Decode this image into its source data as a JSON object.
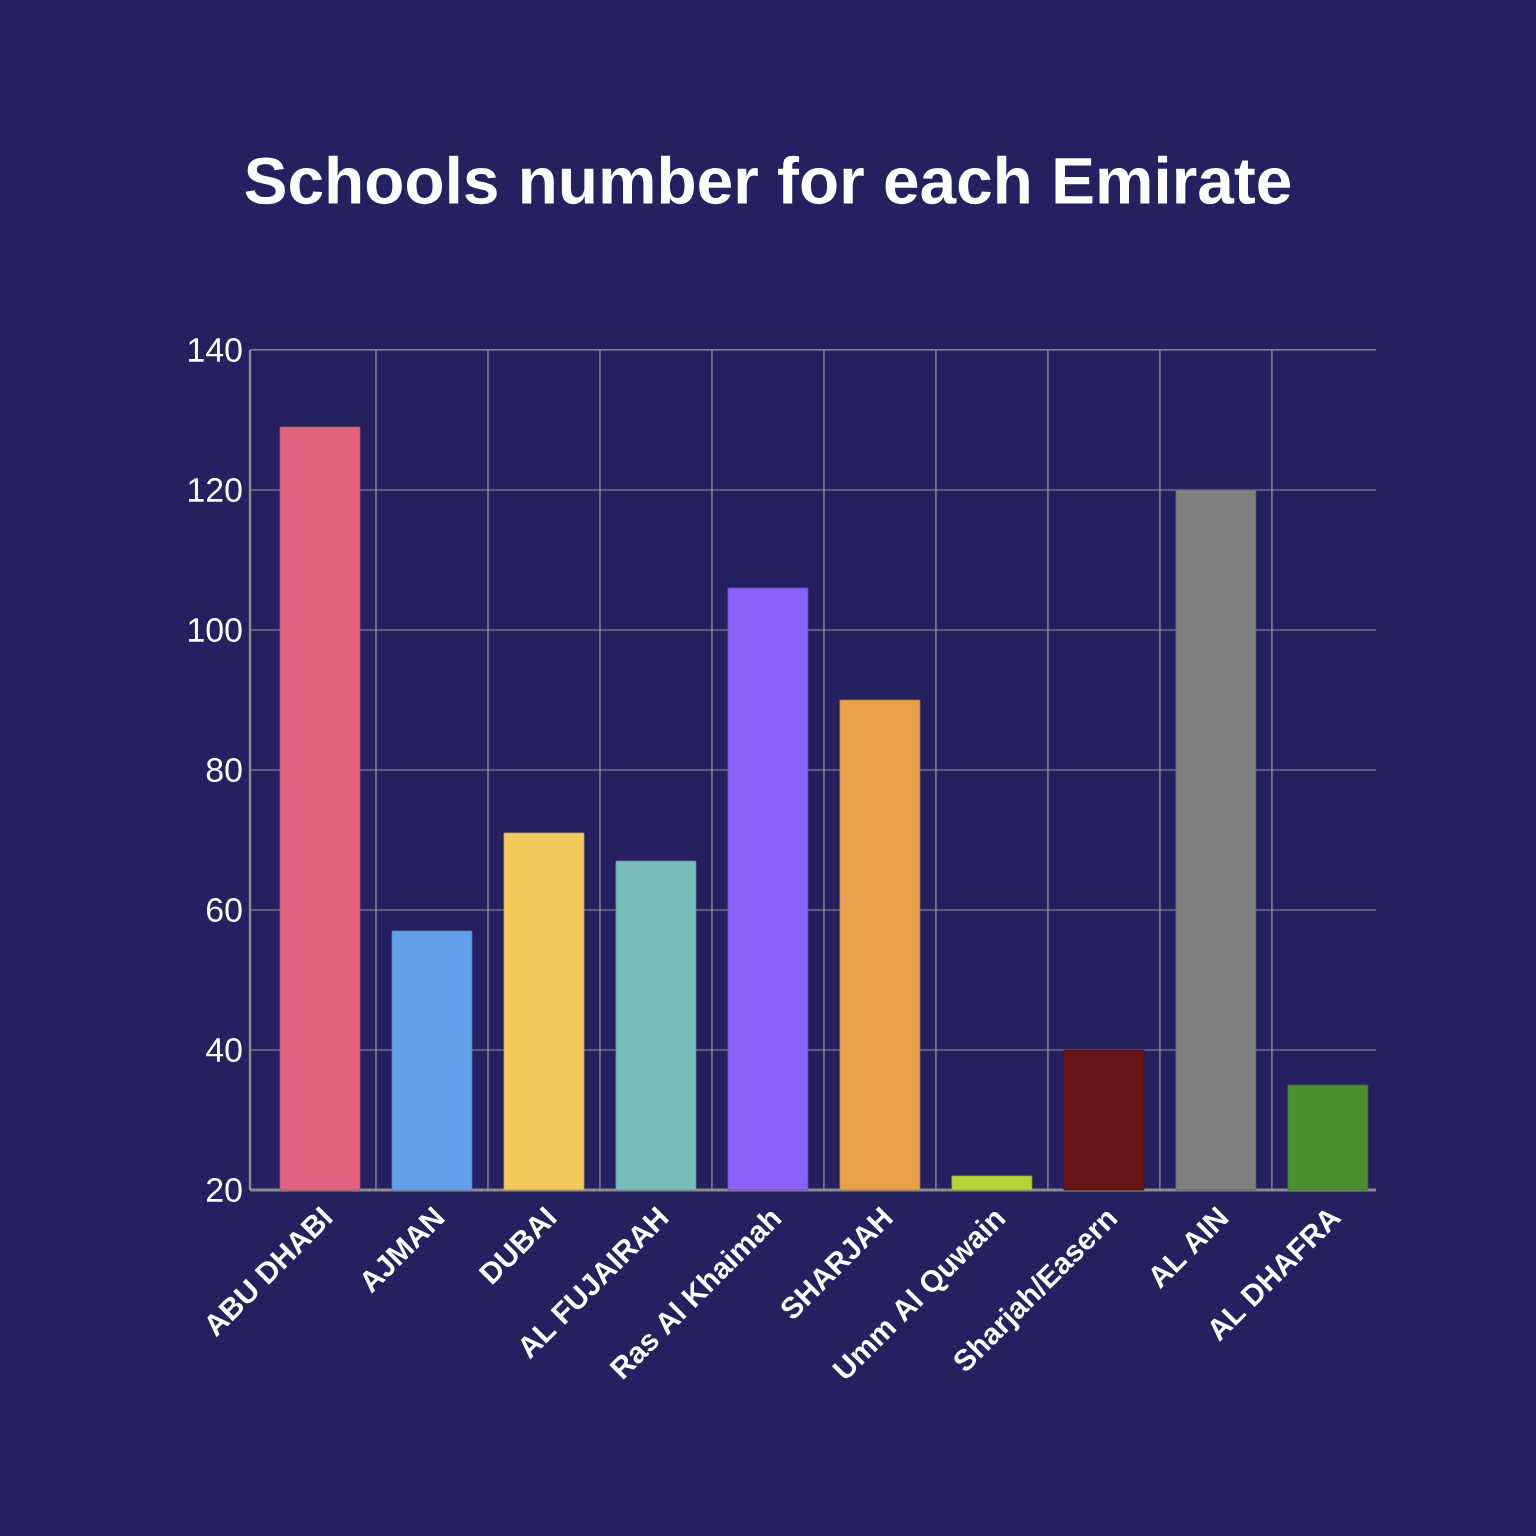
{
  "chart_data": {
    "type": "bar",
    "title": "Schools number for each Emirate",
    "categories": [
      "ABU DHABI",
      "AJMAN",
      "DUBAI",
      "AL FUJAIRAH",
      "Ras Al Khaimah",
      "SHARJAH",
      "Umm Al Quwain",
      "Sharjah/Easern",
      "AL AIN",
      "AL DHAFRA"
    ],
    "values": [
      129,
      57,
      71,
      67,
      106,
      90,
      22,
      40,
      120,
      35
    ],
    "colors": [
      "#e0647e",
      "#629fe8",
      "#f1c95c",
      "#78bcbc",
      "#8b63f8",
      "#e8a04a",
      "#b7d335",
      "#661417",
      "#808080",
      "#4e902f"
    ],
    "ylim": [
      20,
      140
    ],
    "yticks": [
      20,
      40,
      60,
      80,
      100,
      120,
      140
    ],
    "grid": true
  }
}
